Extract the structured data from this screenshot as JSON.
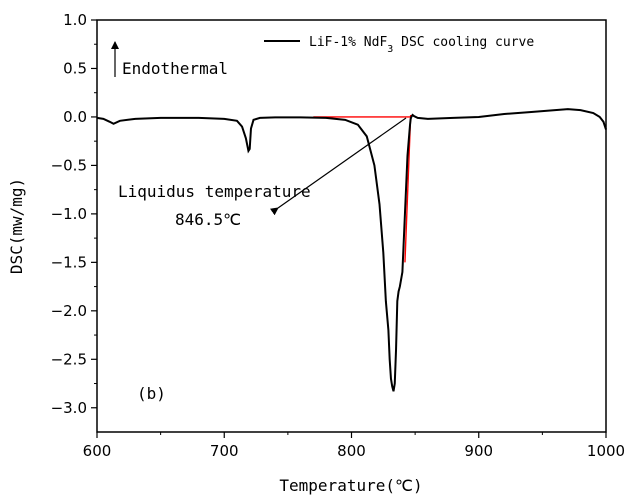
{
  "chart_data": {
    "type": "line",
    "xlabel": "Temperature(℃)",
    "ylabel": "DSC(mw/mg)",
    "xlim": [
      600,
      1000
    ],
    "ylim": [
      -3.25,
      1.0
    ],
    "xticks": [
      600,
      700,
      800,
      900,
      1000
    ],
    "yticks": [
      1.0,
      0.5,
      0.0,
      -0.5,
      -1.0,
      -1.5,
      -2.0,
      -2.5,
      -3.0
    ],
    "ytick_labels": [
      "1.0",
      "0.5",
      "0.0",
      "−0.5",
      "−1.0",
      "−1.5",
      "−2.0",
      "−2.5",
      "−3.0"
    ],
    "grid": false,
    "legend_position": "top-right",
    "series": [
      {
        "name": "LiF-1% NdF3 DSC cooling curve",
        "color": "#000000",
        "x": [
          600,
          605,
          610,
          613,
          618,
          630,
          650,
          680,
          700,
          710,
          714,
          717,
          719,
          720,
          721,
          723,
          728,
          740,
          760,
          780,
          795,
          805,
          812,
          818,
          822,
          825,
          827,
          829,
          830,
          831,
          832,
          833,
          834,
          835,
          836,
          837,
          838,
          840,
          842,
          844,
          846,
          846.5,
          847,
          848,
          849,
          852,
          860,
          880,
          900,
          920,
          940,
          960,
          970,
          980,
          990,
          995,
          998,
          1000
        ],
        "y": [
          -0.01,
          -0.02,
          -0.05,
          -0.07,
          -0.04,
          -0.02,
          -0.01,
          -0.01,
          -0.02,
          -0.04,
          -0.1,
          -0.22,
          -0.35,
          -0.33,
          -0.12,
          -0.03,
          -0.01,
          -0.005,
          -0.005,
          -0.01,
          -0.03,
          -0.08,
          -0.2,
          -0.5,
          -0.9,
          -1.4,
          -1.9,
          -2.2,
          -2.5,
          -2.7,
          -2.78,
          -2.83,
          -2.75,
          -2.4,
          -1.9,
          -1.8,
          -1.75,
          -1.6,
          -1.0,
          -0.4,
          -0.08,
          -0.02,
          0.0,
          0.02,
          0.01,
          -0.01,
          -0.02,
          -0.01,
          0.0,
          0.03,
          0.05,
          0.07,
          0.08,
          0.07,
          0.04,
          0.0,
          -0.05,
          -0.13
        ]
      }
    ],
    "tangent_lines": {
      "color": "#ff0000",
      "baseline": {
        "x": [
          770,
          846.5
        ],
        "y": [
          0.0,
          0.0
        ]
      },
      "onset_tangent": {
        "x": [
          842,
          846.5
        ],
        "y": [
          -1.5,
          0.02
        ]
      }
    },
    "annotations": {
      "endothermal": "Endothermal",
      "liquidus_line1": "Liquidus temperature",
      "liquidus_line2": "846.5℃",
      "panel_label": "(b)"
    }
  }
}
